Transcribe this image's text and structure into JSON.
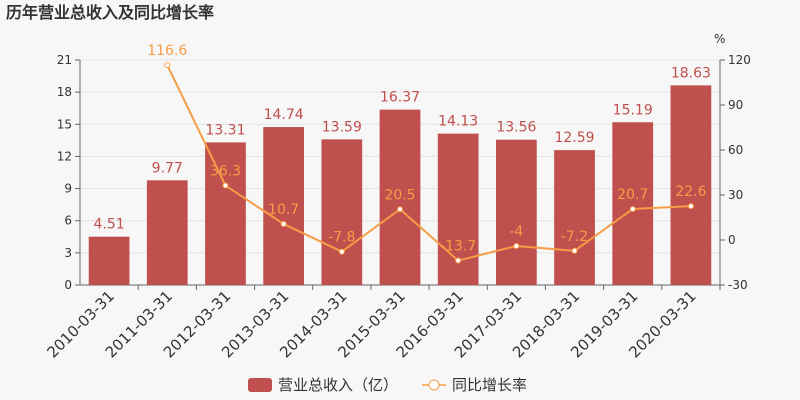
{
  "chart_data": {
    "type": "bar_line",
    "title": "历年营业总收入及同比增长率",
    "categories": [
      "2010-03-31",
      "2011-03-31",
      "2012-03-31",
      "2013-03-31",
      "2014-03-31",
      "2015-03-31",
      "2016-03-31",
      "2017-03-31",
      "2018-03-31",
      "2019-03-31",
      "2020-03-31"
    ],
    "series": [
      {
        "name": "营业总收入（亿）",
        "type": "bar",
        "color": "#c0504d",
        "values": [
          4.51,
          9.77,
          13.31,
          14.74,
          13.59,
          16.37,
          14.13,
          13.56,
          12.59,
          15.19,
          18.63
        ]
      },
      {
        "name": "同比增长率",
        "type": "line",
        "axis": "y2",
        "color": "#f59d47",
        "values": [
          null,
          116.6,
          36.3,
          10.7,
          -7.8,
          20.5,
          -13.7,
          -4,
          -7.2,
          20.7,
          22.6
        ]
      }
    ],
    "ylim": [
      0,
      21
    ],
    "yticks": [
      0,
      3,
      6,
      9,
      12,
      15,
      18,
      21
    ],
    "y2label": "%",
    "y2lim": [
      -30,
      120
    ],
    "y2ticks": [
      -30,
      0,
      30,
      60,
      90,
      120
    ],
    "legend": "bottom"
  }
}
